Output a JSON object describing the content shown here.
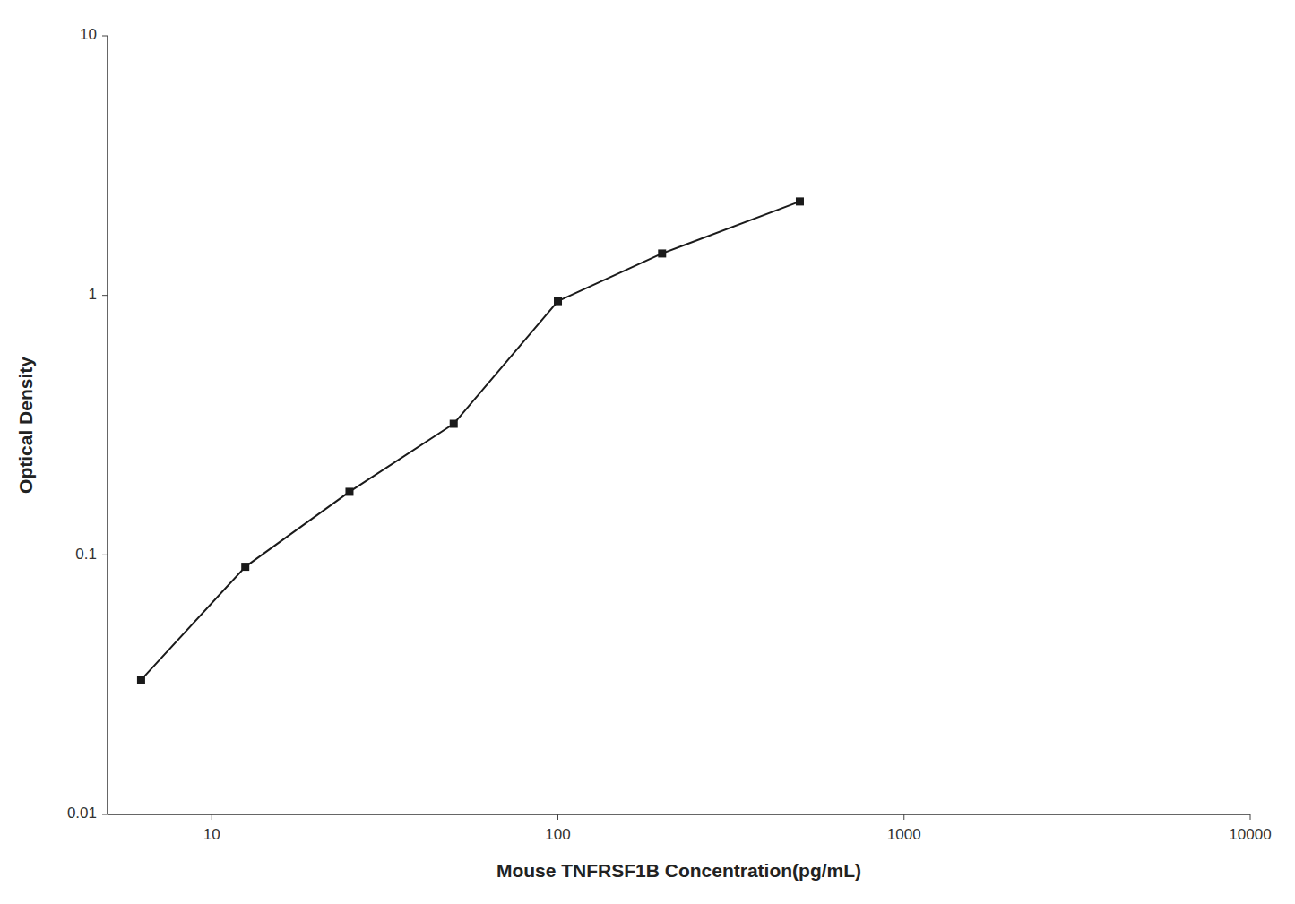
{
  "chart_data": {
    "type": "line",
    "x": [
      6.25,
      12.5,
      25,
      50,
      100,
      200,
      500
    ],
    "values": [
      0.033,
      0.09,
      0.175,
      0.32,
      0.95,
      1.45,
      2.3
    ],
    "xlabel": "Mouse TNFRSF1B Concentration(pg/mL)",
    "ylabel": "Optical Density",
    "xlim": [
      5,
      10000
    ],
    "ylim": [
      0.01,
      10
    ],
    "xticks": [
      10,
      100,
      1000,
      10000
    ],
    "yticks": [
      0.01,
      0.1,
      1,
      10
    ],
    "log": true,
    "grid": false,
    "color": "#1a1a1a",
    "marker": "square"
  }
}
